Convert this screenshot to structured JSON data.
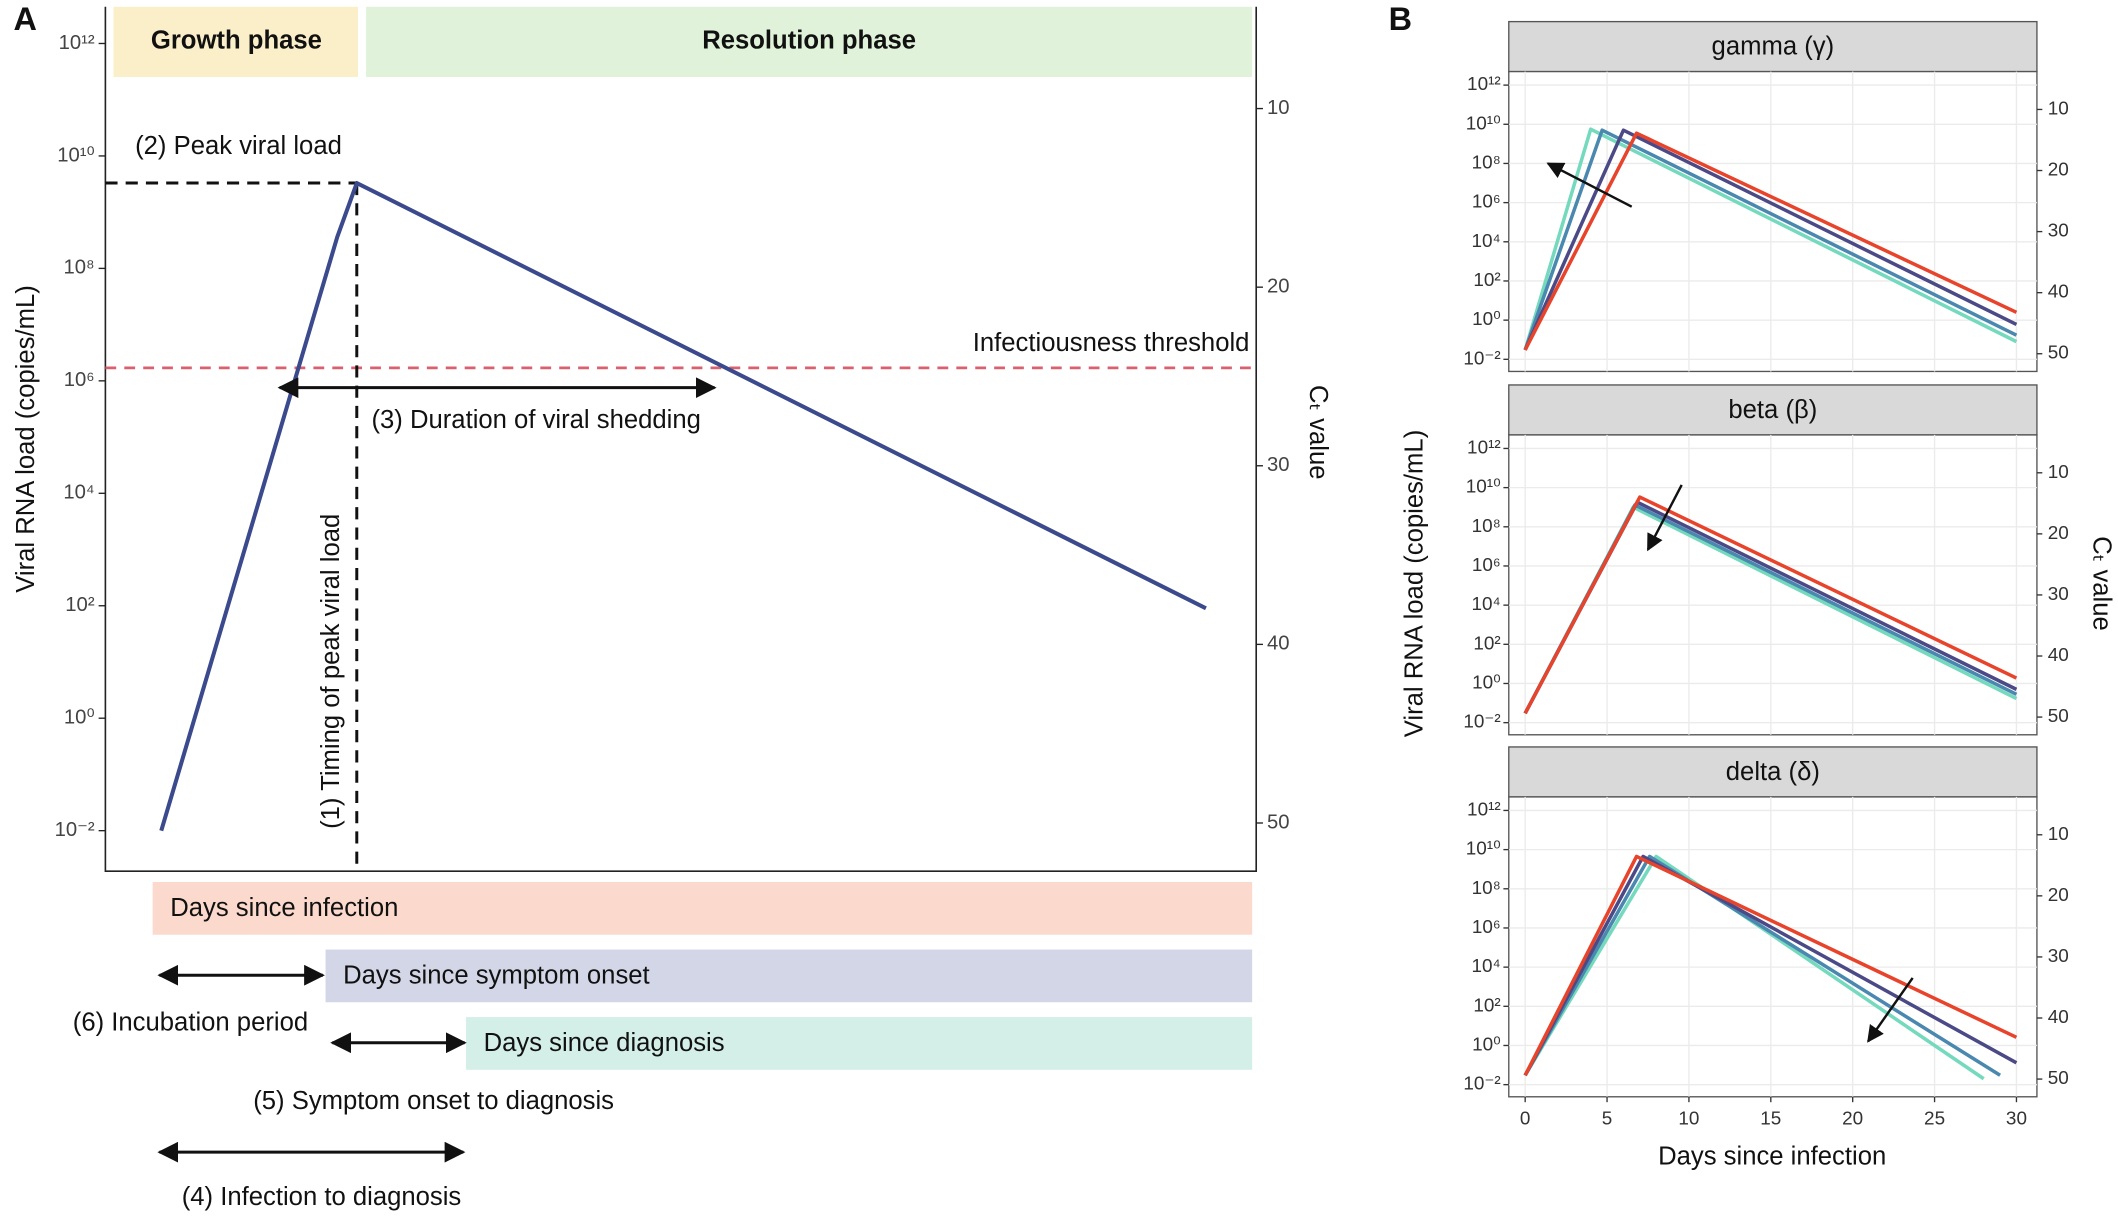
{
  "chart_data": [
    {
      "type": "line",
      "panel_label": "A",
      "y_label": "Viral RNA load (copies/mL)",
      "y2_label": "Cₜ value",
      "x": [
        0,
        6.3,
        7,
        37.4
      ],
      "values": [
        0.01,
        360000000,
        3300000000,
        90
      ],
      "color": "#3b4a8c",
      "xlim": [
        -2,
        39.2
      ],
      "ylim": [
        0.0019,
        4500000000000
      ],
      "log_y": true,
      "yticks": [
        {
          "value": 0.01,
          "label": "10⁻²"
        },
        {
          "value": 1,
          "label": "10⁰"
        },
        {
          "value": 100,
          "label": "10²"
        },
        {
          "value": 10000,
          "label": "10⁴"
        },
        {
          "value": 1000000,
          "label": "10⁶"
        },
        {
          "value": 100000000,
          "label": "10⁸"
        },
        {
          "value": 10000000000,
          "label": "10¹⁰"
        },
        {
          "value": 1000000000000,
          "label": "10¹²"
        }
      ],
      "y2lim": [
        52.7,
        4.3
      ],
      "y2ticks": [
        10,
        20,
        30,
        40,
        50
      ],
      "phases": [
        {
          "text": "Growth phase",
          "color": "#fbefc9"
        },
        {
          "text": "Resolution phase",
          "color": "#e0f2d9"
        }
      ],
      "threshold": {
        "label": "Infectiousness threshold",
        "value": 1700000,
        "color": "#d9606e"
      },
      "peak_label": "(2) Peak viral load",
      "peak_timing_label": "(1) Timing of peak viral load",
      "shedding_label": "(3) Duration of viral shedding",
      "timelines": [
        {
          "text": "Days since infection",
          "color": "#fbd9cc"
        },
        {
          "text": "Days since symptom onset",
          "color": "#d2d6e6"
        },
        {
          "text": "Days since diagnosis",
          "color": "#d3efe8"
        }
      ],
      "intervals": [
        "(6) Incubation period",
        "(5) Symptom onset to diagnosis",
        "(4) Infection to diagnosis"
      ]
    },
    {
      "type": "line",
      "panel_label": "B",
      "title": "gamma (γ)",
      "xlim": [
        -1,
        31.25
      ],
      "ylim": [
        0.0024,
        4900000000000
      ],
      "log_y": true,
      "grid": true,
      "yticks": [
        {
          "value": 0.01,
          "label": "10⁻²"
        },
        {
          "value": 1,
          "label": "10⁰"
        },
        {
          "value": 100,
          "label": "10²"
        },
        {
          "value": 10000,
          "label": "10⁴"
        },
        {
          "value": 1000000,
          "label": "10⁶"
        },
        {
          "value": 100000000,
          "label": "10⁸"
        },
        {
          "value": 10000000000,
          "label": "10¹⁰"
        },
        {
          "value": 1000000000000,
          "label": "10¹²"
        }
      ],
      "y2lim": [
        52.9,
        3.8
      ],
      "y2ticks": [
        10,
        20,
        30,
        40,
        50
      ],
      "series": [
        {
          "color": "#74d9bd",
          "x": [
            0,
            4,
            30
          ],
          "values": [
            0.03,
            5600000000,
            0.08
          ]
        },
        {
          "color": "#4a88b0",
          "x": [
            0,
            4.7,
            30
          ],
          "values": [
            0.03,
            5000000000,
            0.17
          ]
        },
        {
          "color": "#4b4a86",
          "x": [
            0,
            6,
            30
          ],
          "values": [
            0.03,
            5000000000,
            0.6
          ]
        },
        {
          "color": "#e8432b",
          "x": [
            0,
            6.8,
            30
          ],
          "values": [
            0.03,
            3500000000,
            2.5
          ]
        }
      ]
    },
    {
      "type": "line",
      "title": "beta (β)",
      "y_label": "Viral RNA load (copies/mL)",
      "y2_label": "Cₜ value",
      "xlim": [
        -1,
        31.25
      ],
      "ylim": [
        0.0024,
        4900000000000
      ],
      "log_y": true,
      "grid": true,
      "yticks": [
        {
          "value": 0.01,
          "label": "10⁻²"
        },
        {
          "value": 1,
          "label": "10⁰"
        },
        {
          "value": 100,
          "label": "10²"
        },
        {
          "value": 10000,
          "label": "10⁴"
        },
        {
          "value": 1000000,
          "label": "10⁶"
        },
        {
          "value": 100000000,
          "label": "10⁸"
        },
        {
          "value": 10000000000,
          "label": "10¹⁰"
        },
        {
          "value": 1000000000000,
          "label": "10¹²"
        }
      ],
      "y2lim": [
        52.9,
        3.8
      ],
      "y2ticks": [
        10,
        20,
        30,
        40,
        50
      ],
      "series": [
        {
          "color": "#74d9bd",
          "x": [
            0,
            6.6,
            30
          ],
          "values": [
            0.03,
            1000000000,
            0.17
          ]
        },
        {
          "color": "#4a88b0",
          "x": [
            0,
            6.7,
            30
          ],
          "values": [
            0.03,
            1300000000,
            0.28
          ]
        },
        {
          "color": "#4b4a86",
          "x": [
            0,
            6.85,
            30
          ],
          "values": [
            0.03,
            1800000000,
            0.5
          ]
        },
        {
          "color": "#e8432b",
          "x": [
            0,
            7,
            30
          ],
          "values": [
            0.03,
            3300000000,
            1.9
          ]
        }
      ]
    },
    {
      "type": "line",
      "title": "delta (δ)",
      "x_label": "Days since infection",
      "xlim": [
        -1,
        31.25
      ],
      "xticks": [
        0,
        5,
        10,
        15,
        20,
        25,
        30
      ],
      "ylim": [
        0.0024,
        4900000000000
      ],
      "log_y": true,
      "grid": true,
      "yticks": [
        {
          "value": 0.01,
          "label": "10⁻²"
        },
        {
          "value": 1,
          "label": "10⁰"
        },
        {
          "value": 100,
          "label": "10²"
        },
        {
          "value": 10000,
          "label": "10⁴"
        },
        {
          "value": 1000000,
          "label": "10⁶"
        },
        {
          "value": 100000000,
          "label": "10⁸"
        },
        {
          "value": 10000000000,
          "label": "10¹⁰"
        },
        {
          "value": 1000000000000,
          "label": "10¹²"
        }
      ],
      "y2lim": [
        52.9,
        3.8
      ],
      "y2ticks": [
        10,
        20,
        30,
        40,
        50
      ],
      "series": [
        {
          "color": "#74d9bd",
          "x": [
            0,
            8,
            28
          ],
          "values": [
            0.03,
            4500000000,
            0.02
          ]
        },
        {
          "color": "#4a88b0",
          "x": [
            0,
            7.6,
            29
          ],
          "values": [
            0.03,
            4500000000,
            0.03
          ]
        },
        {
          "color": "#4b4a86",
          "x": [
            0,
            7.2,
            30
          ],
          "values": [
            0.03,
            4500000000,
            0.13
          ]
        },
        {
          "color": "#e8432b",
          "x": [
            0,
            6.8,
            30
          ],
          "values": [
            0.03,
            4500000000,
            2.6
          ]
        }
      ]
    }
  ]
}
